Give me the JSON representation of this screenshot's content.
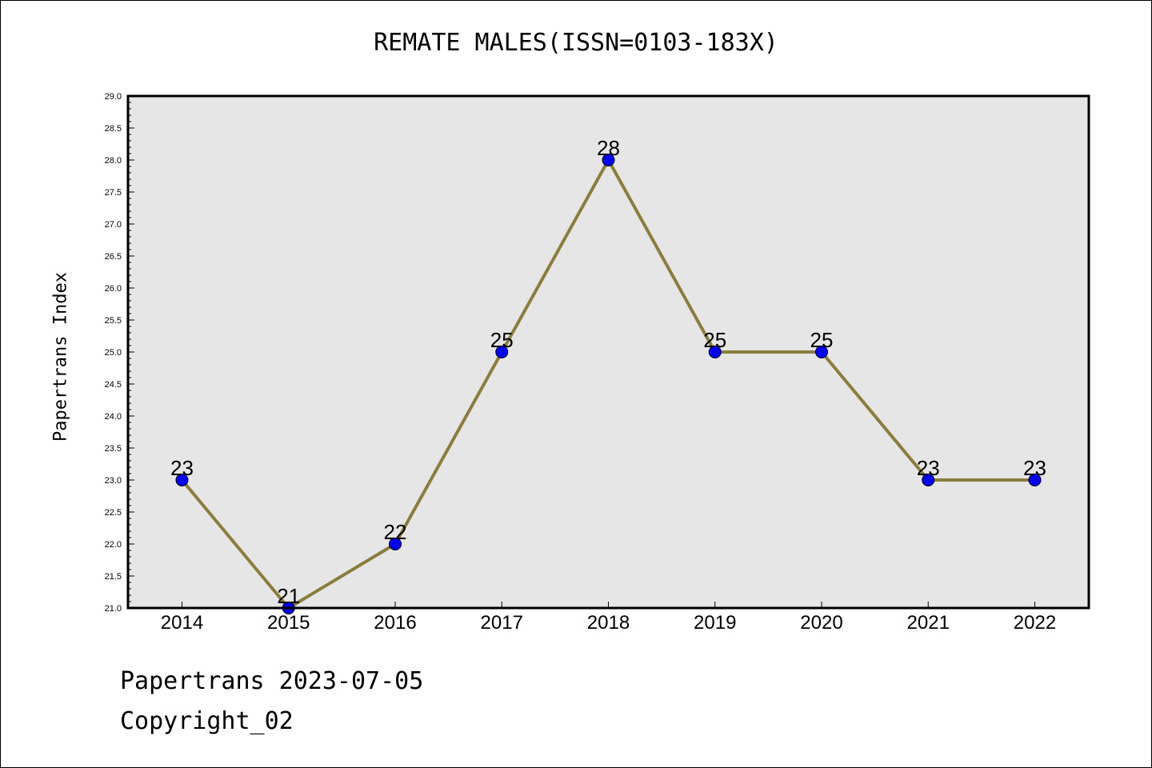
{
  "chart_data": {
    "type": "line",
    "title": "REMATE MALES(ISSN=0103-183X)",
    "ylabel": "Papertrans Index",
    "xlabel": "",
    "categories": [
      "2014",
      "2015",
      "2016",
      "2017",
      "2018",
      "2019",
      "2020",
      "2021",
      "2022"
    ],
    "series": [
      {
        "values": [
          23,
          21,
          22,
          25,
          28,
          25,
          25,
          23,
          23
        ],
        "line_color": "#8b7d3a",
        "marker_color": "#0000ff"
      }
    ],
    "data_labels": [
      "23",
      "21",
      "22",
      "25",
      "28",
      "25",
      "25",
      "23",
      "23"
    ],
    "ylim": [
      21.0,
      29.0
    ],
    "yticks": [
      "21.0",
      "21.5",
      "22.0",
      "22.5",
      "23.0",
      "23.5",
      "24.0",
      "24.5",
      "25.0",
      "25.5",
      "26.0",
      "26.5",
      "27.0",
      "27.5",
      "28.0",
      "28.5",
      "29.0"
    ],
    "grid": false,
    "plot_background": "#e6e6e6"
  },
  "footer": {
    "line1": "Papertrans 2023-07-05",
    "line2": "Copyright_02"
  }
}
